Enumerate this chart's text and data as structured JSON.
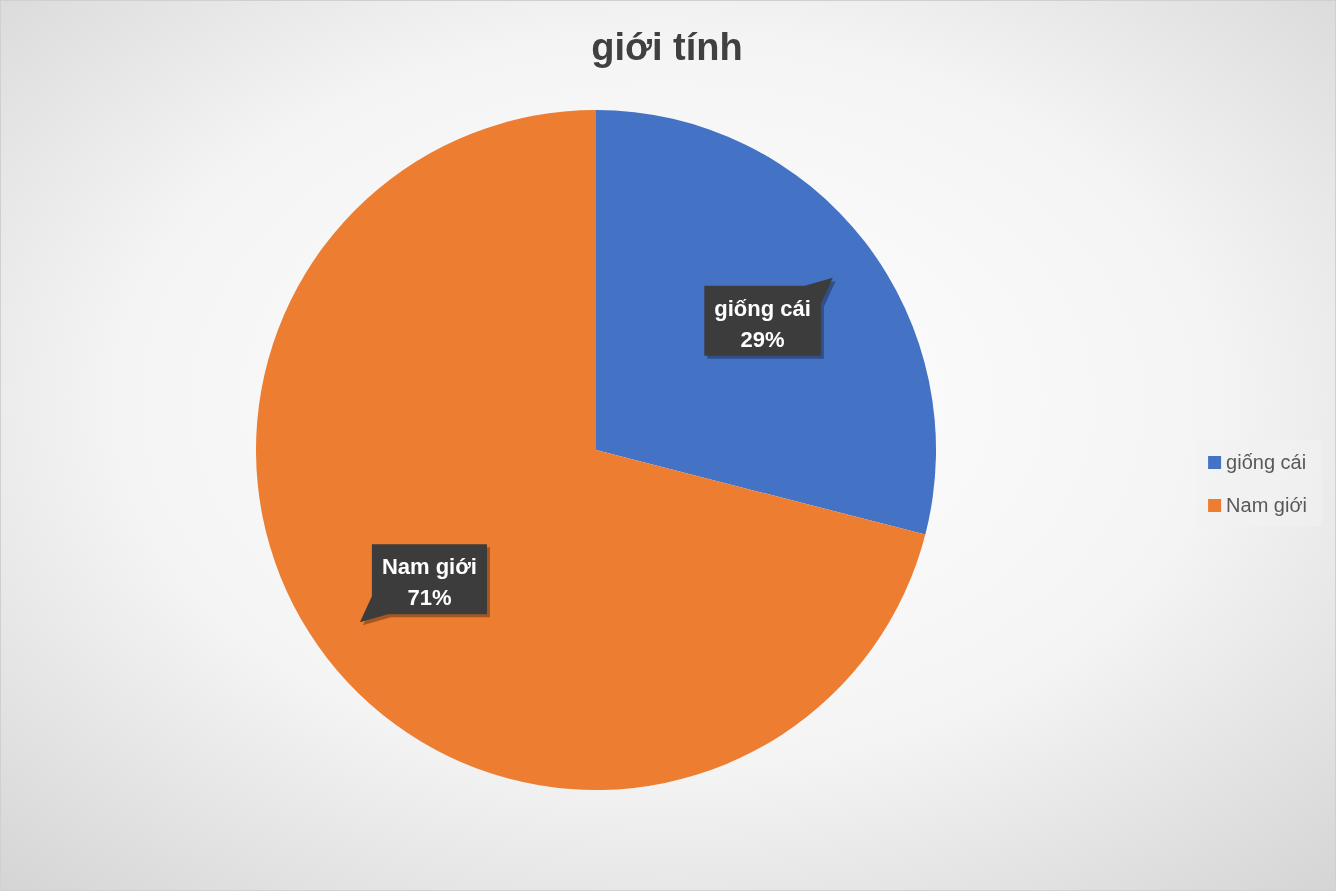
{
  "chart_data": {
    "type": "pie",
    "title": "giới tính",
    "categories": [
      "giống cái",
      "Nam giới"
    ],
    "values": [
      29,
      71
    ],
    "colors": [
      "#4472c4",
      "#ed7d31"
    ],
    "value_labels": [
      "29%",
      "71%"
    ],
    "legend": "right"
  }
}
